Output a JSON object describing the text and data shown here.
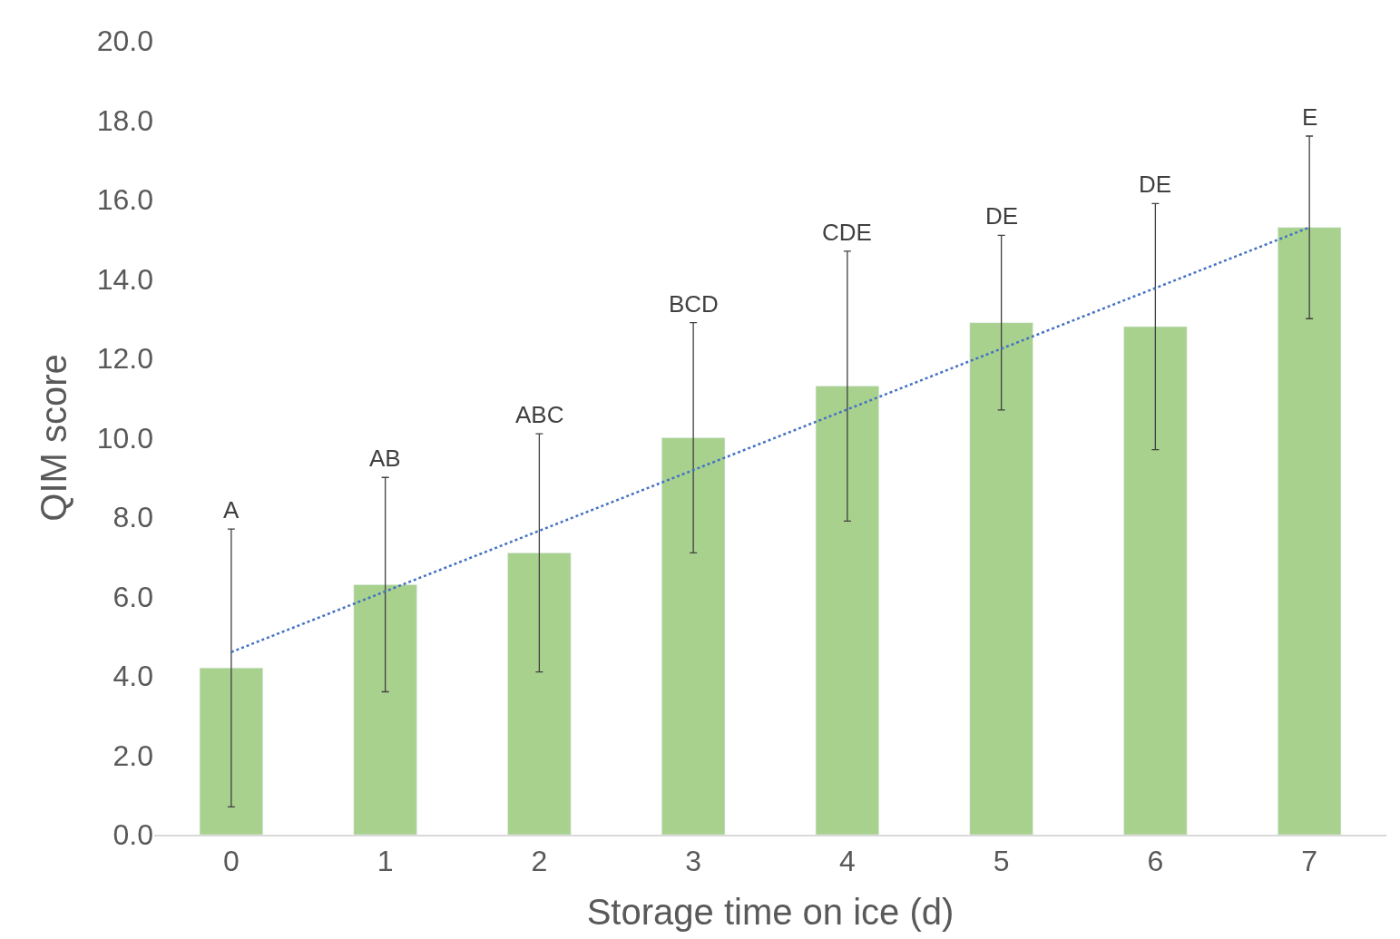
{
  "chart_data": {
    "type": "bar",
    "xlabel": "Storage time on ice (d)",
    "ylabel": "QIM score",
    "categories": [
      "0",
      "1",
      "2",
      "3",
      "4",
      "5",
      "6",
      "7"
    ],
    "series": [
      {
        "color": "#a9d18e",
        "values": [
          4.2,
          6.3,
          7.1,
          10.0,
          11.3,
          12.9,
          12.8,
          15.3
        ],
        "errors": [
          3.5,
          2.7,
          3.0,
          2.9,
          3.4,
          2.2,
          3.1,
          2.3
        ]
      },
      {
        "type": "line",
        "color": "#4472c4",
        "line_style": "dotted",
        "values": [
          4.6,
          null,
          null,
          null,
          null,
          null,
          null,
          15.3
        ]
      }
    ],
    "ylim": [
      0,
      20
    ],
    "yticks": [
      {
        "value": 0,
        "label": "0.0"
      },
      {
        "value": 2,
        "label": "2.0"
      },
      {
        "value": 4,
        "label": "4.0"
      },
      {
        "value": 6,
        "label": "6.0"
      },
      {
        "value": 8,
        "label": "8.0"
      },
      {
        "value": 10,
        "label": "10.0"
      },
      {
        "value": 12,
        "label": "12.0"
      },
      {
        "value": 14,
        "label": "14.0"
      },
      {
        "value": 16,
        "label": "16.0"
      },
      {
        "value": 18,
        "label": "18.0"
      },
      {
        "value": 20,
        "label": "20.0"
      }
    ],
    "annotations": [
      {
        "text": "A",
        "x": "0",
        "y": 7.7
      },
      {
        "text": "AB",
        "x": "1",
        "y": 9.0
      },
      {
        "text": "ABC",
        "x": "2",
        "y": 10.1
      },
      {
        "text": "BCD",
        "x": "3",
        "y": 12.9
      },
      {
        "text": "CDE",
        "x": "4",
        "y": 14.7
      },
      {
        "text": "DE",
        "x": "5",
        "y": 15.1
      },
      {
        "text": "DE",
        "x": "6",
        "y": 15.9
      },
      {
        "text": "E",
        "x": "7",
        "y": 17.6
      }
    ]
  }
}
